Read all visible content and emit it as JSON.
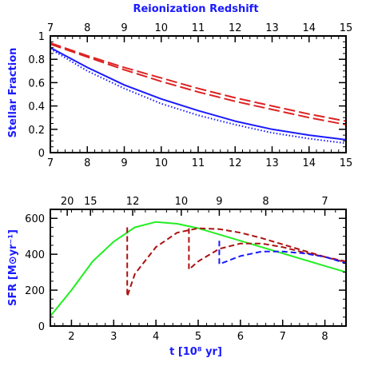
{
  "chart_data": [
    {
      "type": "line",
      "xlabel": "",
      "ylabel": "Stellar Fraction",
      "top_axis_label": "Reionization Redshift",
      "xlim": [
        7,
        15
      ],
      "ylim": [
        0,
        1
      ],
      "xticks": [
        7,
        8,
        9,
        10,
        11,
        12,
        13,
        14,
        15
      ],
      "top_ticks": [
        7,
        8,
        9,
        10,
        11,
        12,
        13,
        14,
        15
      ],
      "yticks": [
        0,
        0.2,
        0.4,
        0.6,
        0.8,
        1
      ],
      "grid": false,
      "legend": "none",
      "series": [
        {
          "color": "#1a1aff",
          "dash": "solid",
          "x": [
            7,
            8,
            9,
            10,
            11,
            12,
            13,
            14,
            15
          ],
          "values": [
            0.9,
            0.73,
            0.58,
            0.46,
            0.36,
            0.27,
            0.2,
            0.15,
            0.11
          ]
        },
        {
          "color": "#1a1aff",
          "dash": "dotted",
          "x": [
            7,
            8,
            9,
            10,
            11,
            12,
            13,
            14,
            15
          ],
          "values": [
            0.89,
            0.7,
            0.55,
            0.42,
            0.32,
            0.24,
            0.17,
            0.12,
            0.08
          ]
        },
        {
          "color": "#dd2222",
          "dash": "longdash",
          "x": [
            7,
            8,
            9,
            10,
            11,
            12,
            13,
            14,
            15
          ],
          "values": [
            0.94,
            0.83,
            0.73,
            0.64,
            0.55,
            0.47,
            0.4,
            0.33,
            0.27
          ]
        },
        {
          "color": "#dd2222",
          "dash": "longdash",
          "x": [
            7,
            8,
            9,
            10,
            11,
            12,
            13,
            14,
            15
          ],
          "values": [
            0.93,
            0.82,
            0.71,
            0.61,
            0.52,
            0.44,
            0.37,
            0.3,
            0.24
          ]
        }
      ]
    },
    {
      "type": "line",
      "xlabel": "t [10⁸ yr]",
      "ylabel": "SFR [M⊙yr⁻¹]",
      "xlim": [
        1.5,
        8.5
      ],
      "ylim": [
        0,
        650
      ],
      "xticks": [
        2,
        3,
        4,
        5,
        6,
        7,
        8
      ],
      "yticks": [
        0,
        200,
        400,
        600
      ],
      "top_axis": {
        "ticks": [
          {
            "t": 1.9,
            "label": "20"
          },
          {
            "t": 2.45,
            "label": "15"
          },
          {
            "t": 3.45,
            "label": "12"
          },
          {
            "t": 4.6,
            "label": "10"
          },
          {
            "t": 5.5,
            "label": "9"
          },
          {
            "t": 6.6,
            "label": "8"
          },
          {
            "t": 8.0,
            "label": "7"
          }
        ]
      },
      "grid": false,
      "legend": "none",
      "series": [
        {
          "color": "#22ee22",
          "dash": "solid",
          "x": [
            1.5,
            2.0,
            2.5,
            3.0,
            3.5,
            4.0,
            4.5,
            5.0,
            5.5,
            6.0,
            6.5,
            7.0,
            7.5,
            8.0,
            8.5
          ],
          "values": [
            55,
            200,
            360,
            470,
            550,
            580,
            570,
            545,
            510,
            475,
            440,
            405,
            370,
            335,
            300
          ]
        },
        {
          "color": "#aa1111",
          "dash": "dashed",
          "x": [
            3.32,
            3.32,
            3.5,
            4.0,
            4.5,
            5.0,
            5.5,
            6.0,
            6.5,
            7.0,
            7.5,
            8.0,
            8.5
          ],
          "values": [
            550,
            165,
            290,
            440,
            520,
            545,
            540,
            520,
            490,
            455,
            420,
            385,
            355
          ]
        },
        {
          "color": "#aa1111",
          "dash": "dashed",
          "x": [
            4.78,
            4.78,
            5.0,
            5.5,
            6.0,
            6.5,
            7.0,
            7.5,
            8.0,
            8.5
          ],
          "values": [
            545,
            315,
            360,
            430,
            460,
            460,
            440,
            410,
            385,
            360
          ]
        },
        {
          "color": "#1a1aff",
          "dash": "dashed",
          "x": [
            5.5,
            5.5,
            6.0,
            6.5,
            7.0,
            7.5,
            8.0,
            8.5
          ],
          "values": [
            475,
            345,
            390,
            415,
            415,
            405,
            385,
            350
          ]
        }
      ]
    }
  ]
}
